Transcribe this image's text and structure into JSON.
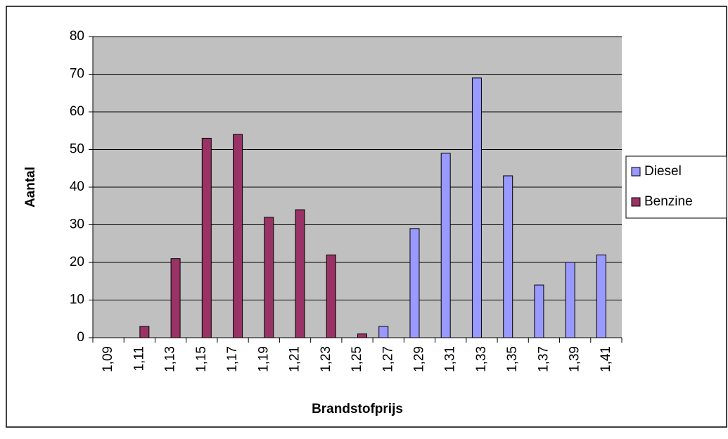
{
  "chart_data": {
    "type": "bar",
    "x_label": "Brandstofprijs",
    "y_label": "Aantal",
    "categories": [
      "1,09",
      "1,11",
      "1,13",
      "1,15",
      "1,17",
      "1,19",
      "1,21",
      "1,23",
      "1,25",
      "1,27",
      "1,29",
      "1,31",
      "1,33",
      "1,35",
      "1,37",
      "1,39",
      "1,41"
    ],
    "series": [
      {
        "name": "Diesel",
        "color": "#9999ff",
        "values": [
          null,
          null,
          null,
          null,
          null,
          null,
          null,
          null,
          null,
          3,
          29,
          49,
          69,
          43,
          14,
          20,
          22
        ]
      },
      {
        "name": "Benzine",
        "color": "#993366",
        "values": [
          null,
          3,
          21,
          53,
          54,
          32,
          34,
          22,
          1,
          null,
          null,
          null,
          null,
          null,
          null,
          null,
          null
        ]
      }
    ],
    "ylim": [
      0,
      80
    ],
    "yticks": [
      0,
      10,
      20,
      30,
      40,
      50,
      60,
      70,
      80
    ],
    "grid": true,
    "legend": "right"
  }
}
